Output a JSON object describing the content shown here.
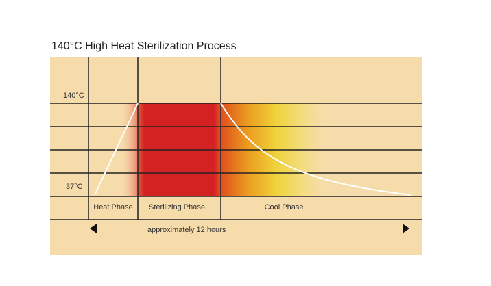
{
  "header": {
    "title": "140°C High Heat Sterilization Process"
  },
  "axis": {
    "high_temp": "140°C",
    "low_temp": "37°C",
    "duration": "approximately 12 hours"
  },
  "phases": [
    {
      "label": "Heat Phase"
    },
    {
      "label": "Sterilizing Phase"
    },
    {
      "label": "Cool Phase"
    }
  ]
}
